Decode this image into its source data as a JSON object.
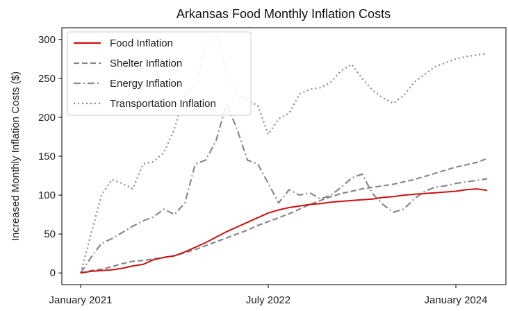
{
  "chart_data": {
    "type": "line",
    "title": "Arkansas Food Monthly Inflation Costs",
    "xlabel": "",
    "ylabel": "Increased Monthly Inflation Costs ($)",
    "x_ticks": [
      "January 2021",
      "July 2022",
      "January 2024"
    ],
    "x": [
      "2021-01",
      "2021-02",
      "2021-03",
      "2021-04",
      "2021-05",
      "2021-06",
      "2021-07",
      "2021-08",
      "2021-09",
      "2021-10",
      "2021-11",
      "2021-12",
      "2022-01",
      "2022-02",
      "2022-03",
      "2022-04",
      "2022-05",
      "2022-06",
      "2022-07",
      "2022-08",
      "2022-09",
      "2022-10",
      "2022-11",
      "2022-12",
      "2023-01",
      "2023-02",
      "2023-03",
      "2023-04",
      "2023-05",
      "2023-06",
      "2023-07",
      "2023-08",
      "2023-09",
      "2023-10",
      "2023-11",
      "2023-12",
      "2024-01",
      "2024-02",
      "2024-03",
      "2024-04"
    ],
    "ylim": [
      -15,
      315
    ],
    "y_ticks": [
      0,
      50,
      100,
      150,
      200,
      250,
      300
    ],
    "grid": false,
    "legend_position": "top-left",
    "series": [
      {
        "name": "Food Inflation",
        "color": "#cc1111",
        "style": "solid",
        "values": [
          0,
          2,
          3,
          4,
          6,
          9,
          11,
          17,
          20,
          22,
          27,
          33,
          39,
          46,
          53,
          59,
          65,
          71,
          77,
          81,
          84,
          86,
          88,
          89,
          91,
          92,
          93,
          94,
          95,
          97,
          98,
          100,
          101,
          102,
          103,
          104,
          105,
          107,
          108,
          106
        ]
      },
      {
        "name": "Shelter Inflation",
        "color": "#888888",
        "style": "dashed",
        "values": [
          0,
          3,
          5,
          8,
          12,
          15,
          16,
          18,
          20,
          22,
          26,
          30,
          35,
          40,
          45,
          50,
          55,
          61,
          66,
          71,
          76,
          82,
          88,
          93,
          98,
          102,
          105,
          108,
          110,
          112,
          114,
          117,
          120,
          124,
          128,
          132,
          136,
          139,
          142,
          147
        ]
      },
      {
        "name": "Energy Inflation",
        "color": "#888888",
        "style": "dashdot",
        "values": [
          0,
          20,
          38,
          44,
          52,
          60,
          67,
          72,
          82,
          75,
          90,
          140,
          145,
          170,
          218,
          185,
          145,
          140,
          115,
          90,
          107,
          100,
          103,
          95,
          100,
          110,
          122,
          127,
          102,
          88,
          78,
          82,
          95,
          105,
          110,
          112,
          115,
          117,
          119,
          121
        ]
      },
      {
        "name": "Transportation Inflation",
        "color": "#888888",
        "style": "dotted",
        "values": [
          0,
          50,
          100,
          120,
          115,
          108,
          140,
          143,
          155,
          185,
          230,
          240,
          290,
          305,
          260,
          228,
          222,
          215,
          178,
          198,
          205,
          230,
          236,
          238,
          245,
          260,
          268,
          250,
          235,
          225,
          218,
          228,
          245,
          255,
          265,
          270,
          275,
          278,
          280,
          282
        ]
      }
    ]
  }
}
